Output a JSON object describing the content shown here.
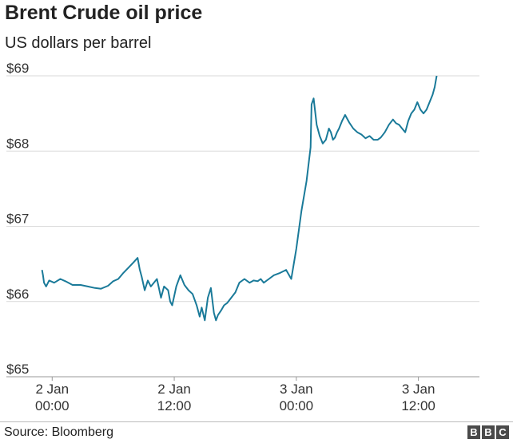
{
  "header": {
    "title": "Brent Crude oil price",
    "subtitle": "US dollars per barrel"
  },
  "footer": {
    "source": "Source: Bloomberg",
    "logo": [
      "B",
      "B",
      "C"
    ]
  },
  "colors": {
    "line": "#1a7a99",
    "grid": "#d9d9d9",
    "text": "#222222"
  },
  "chart_data": {
    "type": "line",
    "title": "Brent Crude oil price",
    "subtitle": "US dollars per barrel",
    "xlabel": "",
    "ylabel": "",
    "x_unit": "hours since 2 Jan 00:00",
    "xlim": [
      -4.5,
      42
    ],
    "ylim": [
      65,
      69
    ],
    "grid": true,
    "yticks": [
      {
        "value": 65,
        "label": "$65"
      },
      {
        "value": 66,
        "label": "$66"
      },
      {
        "value": 67,
        "label": "$67"
      },
      {
        "value": 68,
        "label": "$68"
      },
      {
        "value": 69,
        "label": "$69"
      }
    ],
    "xticks": [
      {
        "value": 0,
        "line1": "2 Jan",
        "line2": "00:00"
      },
      {
        "value": 12,
        "line1": "2 Jan",
        "line2": "12:00"
      },
      {
        "value": 24,
        "line1": "3 Jan",
        "line2": "00:00"
      },
      {
        "value": 36,
        "line1": "3 Jan",
        "line2": "12:00"
      }
    ],
    "series": [
      {
        "name": "",
        "x": [
          -1.0,
          -0.9,
          -0.8,
          -0.6,
          -0.3,
          0.2,
          0.8,
          1.3,
          2.0,
          2.8,
          3.5,
          4.2,
          4.8,
          5.5,
          6.0,
          6.5,
          7.0,
          7.5,
          8.0,
          8.4,
          8.6,
          8.8,
          9.1,
          9.4,
          9.7,
          10.0,
          10.3,
          10.7,
          11.0,
          11.4,
          11.6,
          11.8,
          12.2,
          12.6,
          13.0,
          13.4,
          13.8,
          14.2,
          14.5,
          14.7,
          15.0,
          15.3,
          15.6,
          15.9,
          16.1,
          16.3,
          16.6,
          16.9,
          17.2,
          17.6,
          18.0,
          18.4,
          18.9,
          19.4,
          19.8,
          20.2,
          20.5,
          20.8,
          21.3,
          21.8,
          22.4,
          22.7,
          23.0,
          23.5,
          24.0,
          24.5,
          25.0,
          25.4,
          25.5,
          25.7,
          26.0,
          26.3,
          26.6,
          26.9,
          27.2,
          27.4,
          27.6,
          27.8,
          28.0,
          28.2,
          28.5,
          28.8,
          29.2,
          29.6,
          30.0,
          30.4,
          30.8,
          31.2,
          31.6,
          32.0,
          32.3,
          32.7,
          33.1,
          33.5,
          33.8,
          34.1,
          34.4,
          34.7,
          35.0,
          35.3,
          35.6,
          35.9,
          36.2,
          36.5,
          36.8,
          37.1,
          37.4,
          37.6,
          37.8
        ],
        "y": [
          66.42,
          66.35,
          66.25,
          66.2,
          66.28,
          66.25,
          66.3,
          66.27,
          66.22,
          66.22,
          66.2,
          66.18,
          66.17,
          66.21,
          66.27,
          66.3,
          66.38,
          66.45,
          66.52,
          66.58,
          66.43,
          66.33,
          66.15,
          66.28,
          66.2,
          66.25,
          66.3,
          66.05,
          66.2,
          66.15,
          66.0,
          65.95,
          66.2,
          66.35,
          66.22,
          66.15,
          66.1,
          65.95,
          65.8,
          65.92,
          65.75,
          66.05,
          66.18,
          65.85,
          65.75,
          65.82,
          65.88,
          65.95,
          65.98,
          66.05,
          66.12,
          66.25,
          66.3,
          66.25,
          66.28,
          66.27,
          66.3,
          66.25,
          66.3,
          66.35,
          66.38,
          66.4,
          66.42,
          66.3,
          66.7,
          67.2,
          67.6,
          68.05,
          68.62,
          68.7,
          68.35,
          68.2,
          68.1,
          68.15,
          68.3,
          68.25,
          68.15,
          68.18,
          68.25,
          68.3,
          68.4,
          68.48,
          68.38,
          68.3,
          68.25,
          68.22,
          68.17,
          68.2,
          68.15,
          68.15,
          68.18,
          68.25,
          68.35,
          68.42,
          68.37,
          68.35,
          68.3,
          68.25,
          68.4,
          68.5,
          68.55,
          68.65,
          68.55,
          68.5,
          68.55,
          68.65,
          68.75,
          68.85,
          69.0
        ]
      }
    ]
  }
}
